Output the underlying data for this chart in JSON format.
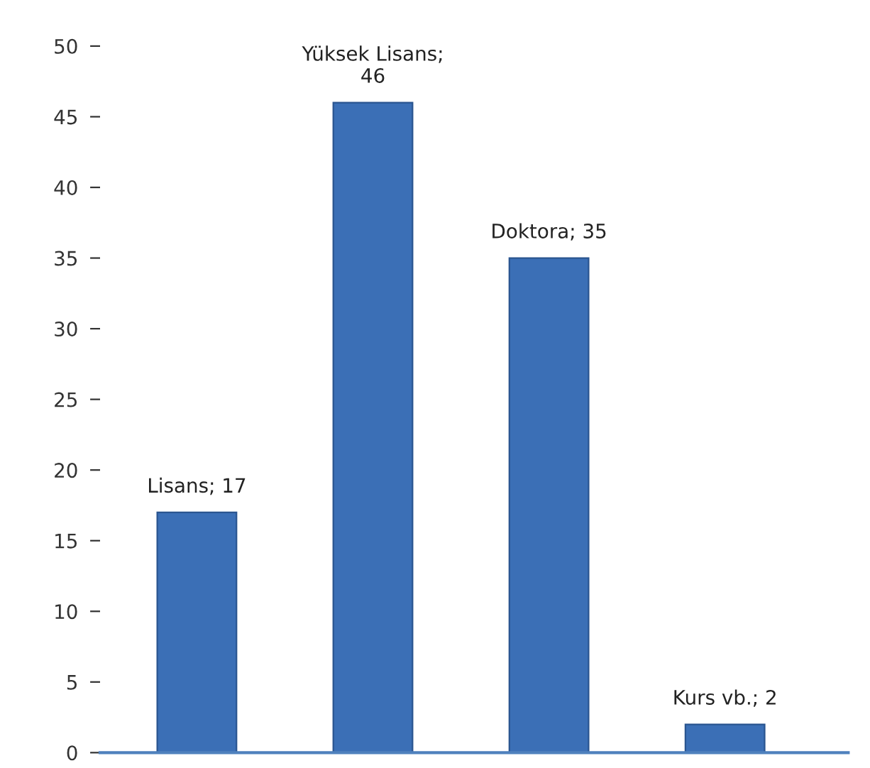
{
  "chart_data": {
    "type": "bar",
    "categories": [
      null,
      null,
      null,
      null
    ],
    "values": [
      17,
      46,
      35,
      2
    ],
    "value_labels": [
      "Lisans; 17",
      "Yüksek Lisans;\n46",
      "Doktora; 35",
      "Kurs vb.; 2"
    ],
    "color": "#3b6fb6",
    "ylim": [
      0,
      50
    ],
    "yticks": [
      0,
      5,
      10,
      15,
      20,
      25,
      30,
      35,
      40,
      45,
      50
    ],
    "grid": false,
    "legend": false
  }
}
